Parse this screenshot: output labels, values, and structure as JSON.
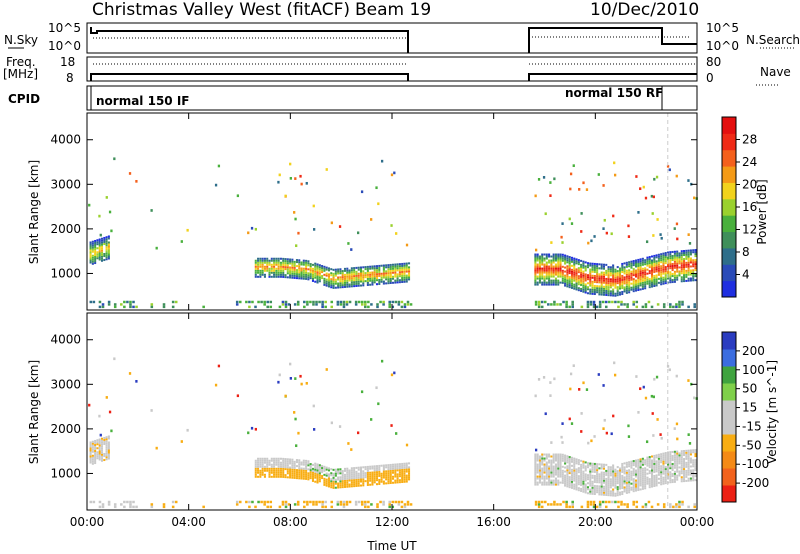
{
  "header": {
    "site": "Christmas Valley West (fitACF)",
    "beam": "Beam 19",
    "date": "10/Dec/2010"
  },
  "small_panels": {
    "nsky_label": "N.Sky",
    "nsky_ticks": [
      "10^5",
      "10^0"
    ],
    "nsearch_label": "N.Search",
    "nsearch_ticks": [
      "10^5",
      "10^0"
    ],
    "freq_label_1": "Freq.",
    "freq_label_2": "[MHz]",
    "freq_ticks": [
      "18",
      "8"
    ],
    "nave_label": "Nave",
    "nave_ticks": [
      "80",
      "0"
    ],
    "cpid_label": "CPID",
    "cpid_segments": [
      "normal 150 IF",
      "normal 150 RF"
    ]
  },
  "colors": {
    "power_scale": [
      "#1f2fe0",
      "#2a4bb8",
      "#2e6e8a",
      "#3f8f5a",
      "#49b03c",
      "#9ad12e",
      "#f2d21c",
      "#f49a16",
      "#f4601c",
      "#ef2a16",
      "#e40f0f"
    ],
    "velocity_scale": [
      "#2a3cc0",
      "#3b6de0",
      "#3fa33f",
      "#7fd04a",
      "#c9c9c9",
      "#c9c9c9",
      "#f8ad12",
      "#f48a16",
      "#f2621c",
      "#ec2014"
    ]
  },
  "chart_data": [
    {
      "type": "heatmap",
      "name": "Power",
      "ylabel": "Slant Range [km]",
      "xlabel": "Time UT",
      "x_ticks": [
        "00:00",
        "04:00",
        "08:00",
        "12:00",
        "16:00",
        "20:00",
        "00:00"
      ],
      "xlim_hours": [
        0,
        24
      ],
      "y_ticks": [
        1000,
        2000,
        3000,
        4000
      ],
      "ylim_km": [
        180,
        4600
      ],
      "colorbar_label": "Power [dB]",
      "colorbar_ticks": [
        4,
        8,
        12,
        16,
        20,
        24,
        28
      ],
      "data_gaps_hours": [
        [
          12.75,
          17.6
        ]
      ],
      "bands": [
        {
          "start": 0.1,
          "end": 0.9,
          "center_km": [
            1450,
            1600
          ],
          "width_km": 500,
          "peak_db": 22
        },
        {
          "start": 6.6,
          "end": 12.7,
          "center_km": [
            1150,
            1150,
            1100,
            900,
            950,
            1000,
            1050
          ],
          "width_km": 450,
          "peak_db": 24
        },
        {
          "start": 17.6,
          "end": 23.9,
          "center_km": [
            1100,
            1100,
            900,
            850,
            1000,
            1150,
            1200
          ],
          "width_km": 700,
          "peak_db": 30
        }
      ],
      "ground_scatter_km": [
        250,
        400
      ]
    },
    {
      "type": "heatmap",
      "name": "Velocity",
      "ylabel": "Slant Range [km]",
      "xlabel": "Time UT",
      "x_ticks": [
        "00:00",
        "04:00",
        "08:00",
        "12:00",
        "16:00",
        "20:00",
        "00:00"
      ],
      "xlim_hours": [
        0,
        24
      ],
      "y_ticks": [
        1000,
        2000,
        3000,
        4000
      ],
      "ylim_km": [
        180,
        4600
      ],
      "colorbar_label": "Velocity [m s^-1]",
      "colorbar_ticks": [
        200,
        100,
        50,
        15,
        -15,
        -50,
        -100,
        -200
      ],
      "data_gaps_hours": [
        [
          12.75,
          17.6
        ]
      ],
      "dominant_velocity_ms": [
        -15,
        15
      ],
      "evening_band_velocity_ms": -30
    }
  ]
}
